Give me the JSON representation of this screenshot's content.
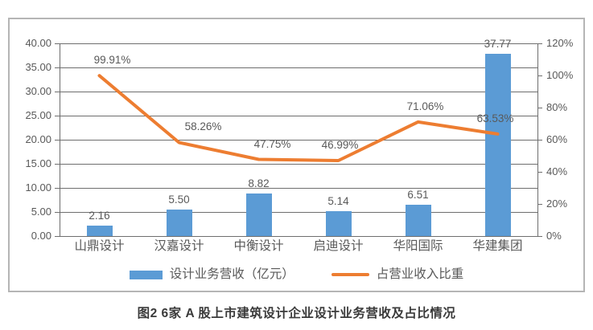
{
  "caption": "图2 6家 A 股上市建筑设计企业设计业务营收及占比情况",
  "legend": {
    "bar_label": "设计业务营收（亿元）",
    "line_label": "占营业收入比重"
  },
  "colors": {
    "bar": "#5B9BD5",
    "line": "#ED7D31",
    "grid": "#6e6e6e",
    "axis_text": "#595959",
    "frame_border": "#b5b5b5",
    "caption_text": "#3a3a3a"
  },
  "chart_data": {
    "type": "bar",
    "subtype": "combo-bar-line",
    "categories": [
      "山鼎设计",
      "汉嘉设计",
      "中衡设计",
      "启迪设计",
      "华阳国际",
      "华建集团"
    ],
    "series": [
      {
        "name": "设计业务营收（亿元）",
        "type": "bar",
        "axis": "left",
        "color": "#5B9BD5",
        "values": [
          2.16,
          5.5,
          8.82,
          5.14,
          6.51,
          37.77
        ],
        "labels": [
          "2.16",
          "5.50",
          "8.82",
          "5.14",
          "6.51",
          "37.77"
        ]
      },
      {
        "name": "占营业收入比重",
        "type": "line",
        "axis": "right",
        "color": "#ED7D31",
        "values": [
          99.91,
          58.26,
          47.75,
          46.99,
          71.06,
          63.53
        ],
        "labels": [
          "99.91%",
          "58.26%",
          "47.75%",
          "46.99%",
          "71.06%",
          "63.53%"
        ]
      }
    ],
    "left_axis": {
      "min": 0,
      "max": 40,
      "step": 5,
      "tick_labels": [
        "40.00",
        "35.00",
        "30.00",
        "25.00",
        "20.00",
        "15.00",
        "10.00",
        "5.00",
        "0.00"
      ]
    },
    "right_axis": {
      "min": 0,
      "max": 120,
      "step": 20,
      "tick_labels": [
        "120%",
        "100%",
        "80%",
        "60%",
        "40%",
        "20%",
        "0%"
      ]
    },
    "grid": true,
    "legend_position": "bottom",
    "title": "图2 6家 A 股上市建筑设计企业设计业务营收及占比情况"
  }
}
